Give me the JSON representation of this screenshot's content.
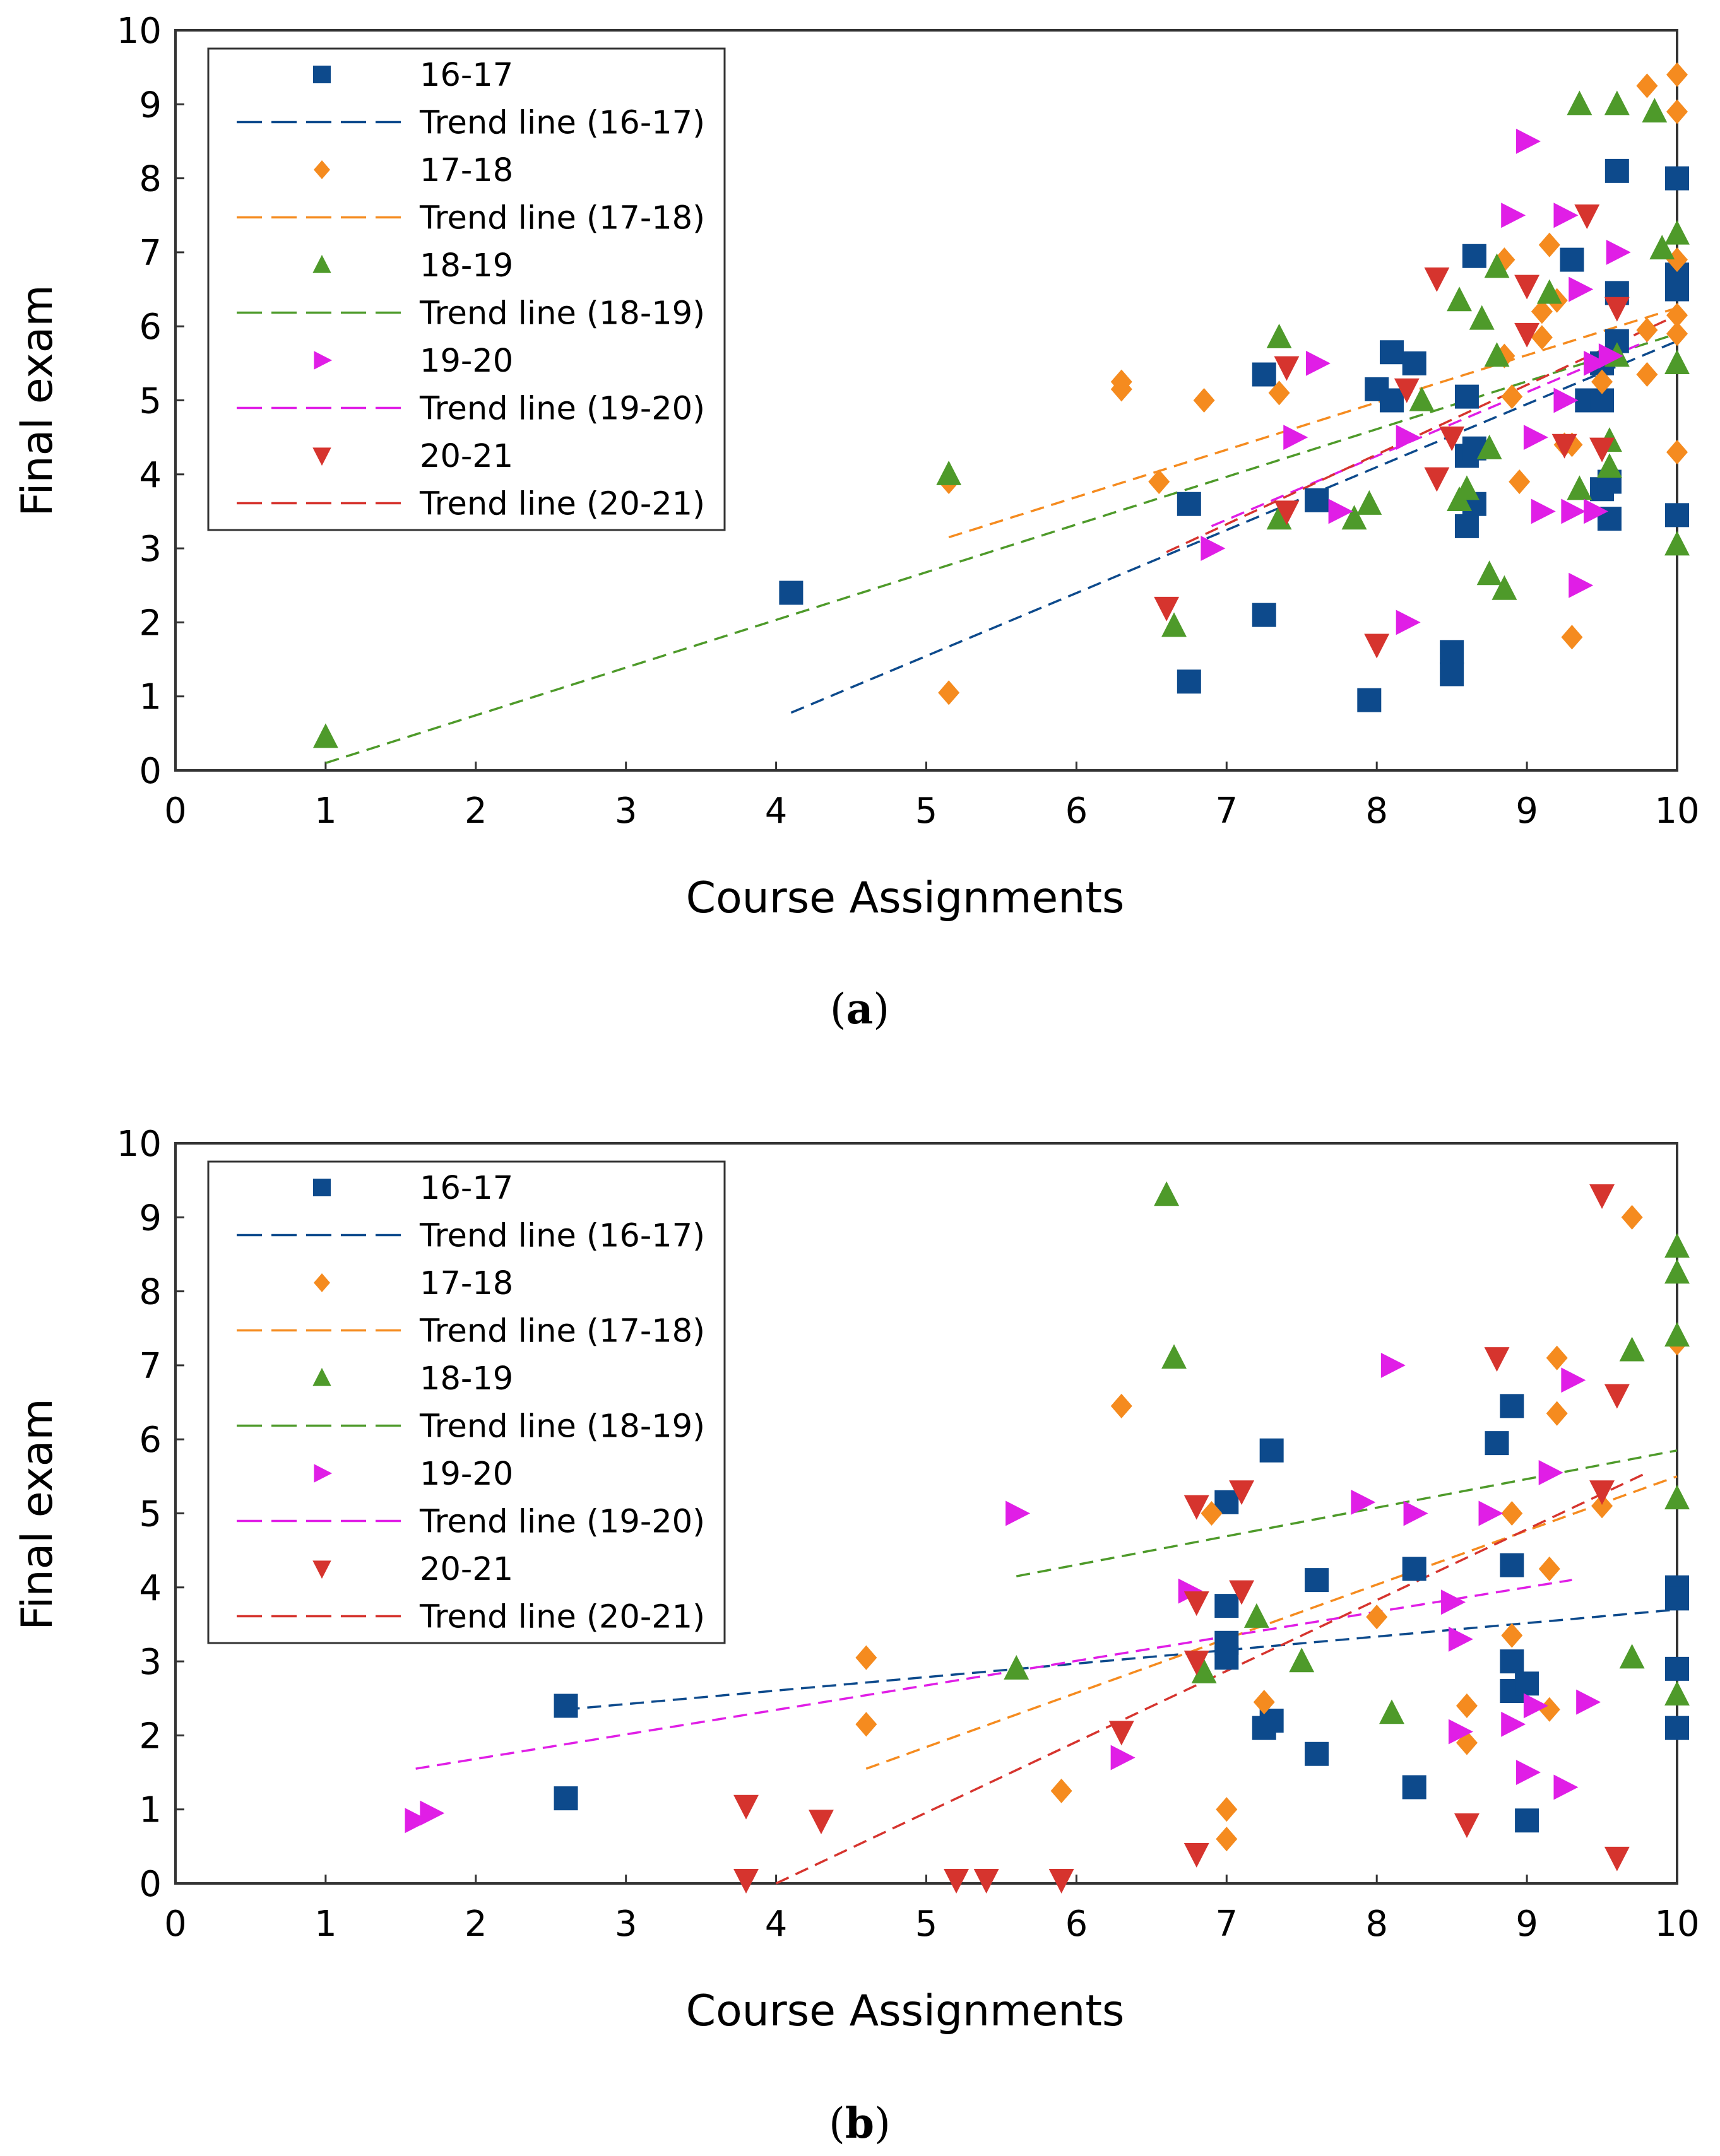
{
  "chart_data": [
    {
      "type": "scatter",
      "caption_label": "a",
      "xlabel": "Course Assignments",
      "ylabel": "Final exam",
      "xlim": [
        0,
        10
      ],
      "ylim": [
        0,
        10
      ],
      "xticks": [
        "0",
        "1",
        "2",
        "3",
        "4",
        "5",
        "6",
        "7",
        "8",
        "9",
        "10"
      ],
      "yticks": [
        "0",
        "1",
        "2",
        "3",
        "4",
        "5",
        "6",
        "7",
        "8",
        "9",
        "10"
      ],
      "legend_position": "top-left",
      "series": [
        {
          "name": "16-17",
          "trend_name": "Trend line (16-17)",
          "marker": "square",
          "color": "#0d4a8c",
          "points": [
            [
              4.1,
              2.4
            ],
            [
              6.75,
              3.6
            ],
            [
              6.75,
              1.2
            ],
            [
              7.25,
              5.35
            ],
            [
              7.25,
              2.1
            ],
            [
              7.6,
              3.65
            ],
            [
              7.95,
              0.95
            ],
            [
              8.0,
              5.15
            ],
            [
              8.1,
              5.65
            ],
            [
              8.1,
              5.0
            ],
            [
              8.25,
              5.5
            ],
            [
              8.5,
              1.6
            ],
            [
              8.5,
              1.3
            ],
            [
              8.6,
              5.05
            ],
            [
              8.6,
              4.25
            ],
            [
              8.6,
              3.3
            ],
            [
              8.65,
              6.95
            ],
            [
              8.65,
              4.35
            ],
            [
              8.65,
              3.6
            ],
            [
              9.3,
              6.9
            ],
            [
              9.4,
              5.0
            ],
            [
              9.5,
              5.5
            ],
            [
              9.5,
              5.0
            ],
            [
              9.5,
              3.8
            ],
            [
              9.55,
              3.9
            ],
            [
              9.55,
              3.4
            ],
            [
              9.6,
              8.1
            ],
            [
              9.6,
              6.45
            ],
            [
              9.6,
              5.8
            ],
            [
              10.0,
              8.0
            ],
            [
              10.0,
              6.7
            ],
            [
              10.0,
              6.5
            ],
            [
              10.0,
              3.45
            ]
          ],
          "trend": [
            [
              4.1,
              0.78
            ],
            [
              10.0,
              5.8
            ]
          ]
        },
        {
          "name": "17-18",
          "trend_name": "Trend line (17-18)",
          "marker": "diamond",
          "color": "#f58b1f",
          "points": [
            [
              5.15,
              3.9
            ],
            [
              5.15,
              1.05
            ],
            [
              6.3,
              5.25
            ],
            [
              6.3,
              5.15
            ],
            [
              6.55,
              3.9
            ],
            [
              6.85,
              5.0
            ],
            [
              7.35,
              5.1
            ],
            [
              8.85,
              6.9
            ],
            [
              8.85,
              5.6
            ],
            [
              8.95,
              3.9
            ],
            [
              9.1,
              6.2
            ],
            [
              9.15,
              7.1
            ],
            [
              9.2,
              6.35
            ],
            [
              9.25,
              4.4
            ],
            [
              9.3,
              4.4
            ],
            [
              9.3,
              1.8
            ],
            [
              9.5,
              5.25
            ],
            [
              9.8,
              9.25
            ],
            [
              9.8,
              5.95
            ],
            [
              9.8,
              5.35
            ],
            [
              10.0,
              9.4
            ],
            [
              10.0,
              8.9
            ],
            [
              10.0,
              6.9
            ],
            [
              10.0,
              6.15
            ],
            [
              10.0,
              5.9
            ],
            [
              10.0,
              4.3
            ],
            [
              9.1,
              5.85
            ],
            [
              8.9,
              5.05
            ]
          ],
          "trend": [
            [
              5.15,
              3.15
            ],
            [
              10.0,
              6.25
            ]
          ]
        },
        {
          "name": "18-19",
          "trend_name": "Trend line (18-19)",
          "marker": "triangle-up",
          "color": "#4e9a2a",
          "points": [
            [
              1.0,
              0.45
            ],
            [
              5.15,
              4.0
            ],
            [
              6.65,
              1.95
            ],
            [
              7.35,
              5.85
            ],
            [
              7.35,
              3.4
            ],
            [
              7.85,
              3.4
            ],
            [
              7.95,
              3.6
            ],
            [
              8.3,
              5.0
            ],
            [
              8.55,
              3.65
            ],
            [
              8.55,
              6.35
            ],
            [
              8.6,
              3.8
            ],
            [
              8.7,
              6.1
            ],
            [
              8.75,
              4.35
            ],
            [
              8.75,
              2.65
            ],
            [
              8.8,
              5.6
            ],
            [
              8.8,
              6.8
            ],
            [
              8.85,
              2.45
            ],
            [
              9.15,
              6.45
            ],
            [
              9.35,
              9.0
            ],
            [
              9.35,
              3.8
            ],
            [
              9.55,
              4.45
            ],
            [
              9.55,
              4.1
            ],
            [
              9.6,
              9.0
            ],
            [
              9.6,
              5.6
            ],
            [
              9.85,
              8.9
            ],
            [
              9.9,
              7.05
            ],
            [
              10.0,
              7.25
            ],
            [
              10.0,
              5.5
            ],
            [
              10.0,
              3.05
            ]
          ],
          "trend": [
            [
              1.0,
              0.1
            ],
            [
              10.0,
              5.9
            ]
          ]
        },
        {
          "name": "19-20",
          "trend_name": "Trend line (19-20)",
          "marker": "triangle-right",
          "color": "#e01ee6",
          "points": [
            [
              6.9,
              3.0
            ],
            [
              7.45,
              4.5
            ],
            [
              7.6,
              5.5
            ],
            [
              7.75,
              3.5
            ],
            [
              8.2,
              4.5
            ],
            [
              8.2,
              2.0
            ],
            [
              8.9,
              7.5
            ],
            [
              9.0,
              8.5
            ],
            [
              9.05,
              4.5
            ],
            [
              9.1,
              3.5
            ],
            [
              9.25,
              7.5
            ],
            [
              9.25,
              5.0
            ],
            [
              9.3,
              3.5
            ],
            [
              9.35,
              2.5
            ],
            [
              9.35,
              6.5
            ],
            [
              9.45,
              3.5
            ],
            [
              9.45,
              5.5
            ],
            [
              9.55,
              5.6
            ],
            [
              9.6,
              7.0
            ]
          ],
          "trend": [
            [
              6.9,
              3.3
            ],
            [
              9.8,
              5.8
            ]
          ]
        },
        {
          "name": "20-21",
          "trend_name": "Trend line (20-21)",
          "marker": "triangle-down",
          "color": "#d6342e",
          "points": [
            [
              6.6,
              2.2
            ],
            [
              7.4,
              5.45
            ],
            [
              7.4,
              3.5
            ],
            [
              8.0,
              1.7
            ],
            [
              8.2,
              5.15
            ],
            [
              8.4,
              6.65
            ],
            [
              8.4,
              3.95
            ],
            [
              8.5,
              4.5
            ],
            [
              9.0,
              6.55
            ],
            [
              9.0,
              5.9
            ],
            [
              9.25,
              4.4
            ],
            [
              9.4,
              7.5
            ],
            [
              9.5,
              4.35
            ],
            [
              9.6,
              6.25
            ]
          ],
          "trend": [
            [
              6.6,
              2.95
            ],
            [
              10.0,
              6.15
            ]
          ]
        }
      ]
    },
    {
      "type": "scatter",
      "caption_label": "b",
      "xlabel": "Course Assignments",
      "ylabel": "Final exam",
      "xlim": [
        0,
        10
      ],
      "ylim": [
        0,
        10
      ],
      "xticks": [
        "0",
        "1",
        "2",
        "3",
        "4",
        "5",
        "6",
        "7",
        "8",
        "9",
        "10"
      ],
      "yticks": [
        "0",
        "1",
        "2",
        "3",
        "4",
        "5",
        "6",
        "7",
        "8",
        "9",
        "10"
      ],
      "legend_position": "top-left",
      "series": [
        {
          "name": "16-17",
          "trend_name": "Trend line (16-17)",
          "marker": "square",
          "color": "#0d4a8c",
          "points": [
            [
              2.6,
              2.4
            ],
            [
              2.6,
              1.15
            ],
            [
              7.0,
              5.15
            ],
            [
              7.0,
              3.75
            ],
            [
              7.0,
              3.25
            ],
            [
              7.0,
              3.05
            ],
            [
              7.25,
              2.1
            ],
            [
              7.3,
              2.2
            ],
            [
              7.3,
              5.85
            ],
            [
              7.6,
              4.1
            ],
            [
              7.6,
              1.75
            ],
            [
              8.25,
              4.25
            ],
            [
              8.25,
              1.3
            ],
            [
              8.8,
              5.95
            ],
            [
              8.9,
              6.45
            ],
            [
              8.9,
              4.3
            ],
            [
              8.9,
              3.0
            ],
            [
              8.9,
              2.6
            ],
            [
              9.0,
              2.7
            ],
            [
              9.0,
              0.85
            ],
            [
              10.0,
              4.0
            ],
            [
              10.0,
              3.85
            ],
            [
              10.0,
              2.9
            ],
            [
              10.0,
              2.1
            ]
          ],
          "trend": [
            [
              2.6,
              2.35
            ],
            [
              10.0,
              3.7
            ]
          ]
        },
        {
          "name": "17-18",
          "trend_name": "Trend line (17-18)",
          "marker": "diamond",
          "color": "#f58b1f",
          "points": [
            [
              4.6,
              3.05
            ],
            [
              4.6,
              2.15
            ],
            [
              5.9,
              1.25
            ],
            [
              6.3,
              6.45
            ],
            [
              6.9,
              5.0
            ],
            [
              7.0,
              1.0
            ],
            [
              7.0,
              0.6
            ],
            [
              7.25,
              2.45
            ],
            [
              8.0,
              3.6
            ],
            [
              8.6,
              2.4
            ],
            [
              8.6,
              1.9
            ],
            [
              8.9,
              5.0
            ],
            [
              8.9,
              3.35
            ],
            [
              9.15,
              4.25
            ],
            [
              9.15,
              2.35
            ],
            [
              9.2,
              7.1
            ],
            [
              9.2,
              6.35
            ],
            [
              9.5,
              5.1
            ],
            [
              9.7,
              9.0
            ],
            [
              10.0,
              7.3
            ]
          ],
          "trend": [
            [
              4.6,
              1.55
            ],
            [
              10.0,
              5.5
            ]
          ]
        },
        {
          "name": "18-19",
          "trend_name": "Trend line (18-19)",
          "marker": "triangle-up",
          "color": "#4e9a2a",
          "points": [
            [
              5.6,
              2.9
            ],
            [
              6.6,
              9.3
            ],
            [
              6.65,
              7.1
            ],
            [
              6.85,
              2.85
            ],
            [
              7.2,
              3.6
            ],
            [
              7.5,
              3.0
            ],
            [
              8.1,
              2.3
            ],
            [
              9.7,
              7.2
            ],
            [
              9.7,
              3.05
            ],
            [
              10.0,
              8.6
            ],
            [
              10.0,
              8.25
            ],
            [
              10.0,
              7.4
            ],
            [
              10.0,
              5.2
            ],
            [
              10.0,
              2.55
            ]
          ],
          "trend": [
            [
              5.6,
              4.15
            ],
            [
              10.0,
              5.85
            ]
          ]
        },
        {
          "name": "19-20",
          "trend_name": "Trend line (19-20)",
          "marker": "triangle-right",
          "color": "#e01ee6",
          "points": [
            [
              1.6,
              0.85
            ],
            [
              1.7,
              0.95
            ],
            [
              5.6,
              5.0
            ],
            [
              6.3,
              1.7
            ],
            [
              6.75,
              3.95
            ],
            [
              7.9,
              5.15
            ],
            [
              8.1,
              7.0
            ],
            [
              8.25,
              5.0
            ],
            [
              8.5,
              3.8
            ],
            [
              8.55,
              3.3
            ],
            [
              8.55,
              2.05
            ],
            [
              8.75,
              5.0
            ],
            [
              8.9,
              2.15
            ],
            [
              9.0,
              1.5
            ],
            [
              9.05,
              2.4
            ],
            [
              9.15,
              5.55
            ],
            [
              9.25,
              1.3
            ],
            [
              9.3,
              6.8
            ],
            [
              9.4,
              2.45
            ]
          ],
          "trend": [
            [
              1.6,
              1.55
            ],
            [
              9.3,
              4.1
            ]
          ]
        },
        {
          "name": "20-21",
          "trend_name": "Trend line (20-21)",
          "marker": "triangle-down",
          "color": "#d6342e",
          "points": [
            [
              3.8,
              1.05
            ],
            [
              3.8,
              0.05
            ],
            [
              4.3,
              0.85
            ],
            [
              5.2,
              0.05
            ],
            [
              5.4,
              0.05
            ],
            [
              5.9,
              0.05
            ],
            [
              6.3,
              2.05
            ],
            [
              6.8,
              5.1
            ],
            [
              6.8,
              3.8
            ],
            [
              6.8,
              3.0
            ],
            [
              6.8,
              0.4
            ],
            [
              7.1,
              5.3
            ],
            [
              7.1,
              3.95
            ],
            [
              8.6,
              0.8
            ],
            [
              8.8,
              7.1
            ],
            [
              9.5,
              9.3
            ],
            [
              9.5,
              5.3
            ],
            [
              9.6,
              6.6
            ],
            [
              9.6,
              0.35
            ]
          ],
          "trend": [
            [
              4.0,
              0.0
            ],
            [
              9.8,
              5.55
            ]
          ]
        }
      ]
    }
  ]
}
